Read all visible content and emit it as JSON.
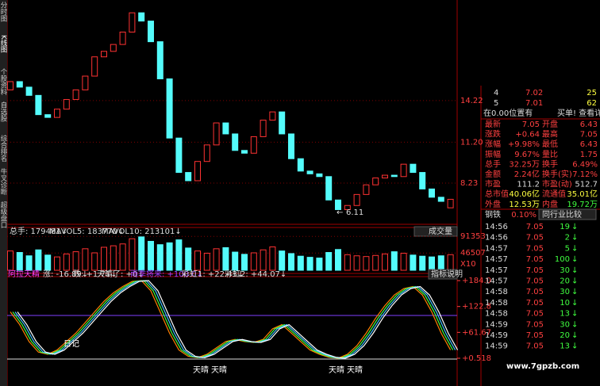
{
  "sidebar": [
    "分时图",
    "K线图",
    "个股资料",
    "自选股",
    "综合排名",
    "牛叉诊断",
    "超级盘口"
  ],
  "kline": {
    "open": [
      15.0,
      15.6,
      15.2,
      14.6,
      13.2,
      13.0,
      13.6,
      14.3,
      15.0,
      16.0,
      17.4,
      17.8,
      18.3,
      19.2,
      20.6,
      20.0,
      18.5,
      15.8,
      11.5,
      9.0,
      8.4,
      9.8,
      11.0,
      12.6,
      11.8,
      10.6,
      10.4,
      11.6,
      12.8,
      13.4,
      11.8,
      10.0,
      9.1,
      8.9,
      8.7,
      7.0,
      6.3,
      6.6,
      7.4,
      8.1,
      8.6,
      8.8,
      8.7,
      9.6,
      9.0,
      7.8,
      7.2,
      6.43
    ],
    "close": [
      15.6,
      15.2,
      14.6,
      13.2,
      13.0,
      13.6,
      14.3,
      15.0,
      16.0,
      17.4,
      17.8,
      18.3,
      19.2,
      20.6,
      20.0,
      18.5,
      15.8,
      11.5,
      9.0,
      8.4,
      9.8,
      11.0,
      12.6,
      11.8,
      10.6,
      10.4,
      11.6,
      12.8,
      13.4,
      11.8,
      10.0,
      9.1,
      8.9,
      8.7,
      7.0,
      6.3,
      6.6,
      7.4,
      8.1,
      8.6,
      8.8,
      8.7,
      9.6,
      9.0,
      7.8,
      7.2,
      6.9,
      7.05
    ],
    "ylim": [
      5.29,
      21.53
    ],
    "yticks": [
      14.22,
      {
        "value": 11.2,
        "label": "11.20"
      },
      8.23
    ],
    "low": 6.11
  },
  "volume": {
    "header": [
      "总手: 179481↓",
      "MAVOL5: 183770↓",
      "MAVOL10: 213101↓"
    ],
    "selector": "成交量",
    "values": [
      52000,
      48000,
      39000,
      55000,
      41000,
      36000,
      44000,
      50000,
      58000,
      47000,
      62000,
      66000,
      71000,
      85000,
      90000,
      78000,
      69000,
      74000,
      82000,
      60000,
      52000,
      46000,
      58000,
      61000,
      49000,
      43000,
      47000,
      55000,
      63000,
      52000,
      45000,
      38000,
      35000,
      33000,
      48000,
      56000,
      42000,
      39000,
      37000,
      40000,
      44000,
      50000,
      46000,
      41000,
      38000,
      36000,
      39000,
      42000
    ],
    "ylim": [
      0,
      104640
    ],
    "yticks": [
      91353,
      46507
    ],
    "unit": "X10"
  },
  "indicator": {
    "header": [
      "阿拉天精",
      "涨: -16.89↓",
      "跌: +1.71↓",
      "天晴了: +0↓",
      "雨季将来: +100.0↓",
      "彩虹1: +22.43↓",
      "彩虹2: +44.07↓"
    ],
    "button": "指标说明",
    "values": [
      110,
      80,
      40,
      15,
      10,
      20,
      40,
      60,
      85,
      110,
      135,
      155,
      170,
      182,
      184,
      160,
      110,
      60,
      20,
      5,
      2,
      10,
      25,
      40,
      45,
      40,
      38,
      45,
      70,
      80,
      60,
      40,
      20,
      10,
      3,
      0.6,
      10,
      30,
      60,
      95,
      125,
      150,
      165,
      170,
      150,
      110,
      60,
      20
    ],
    "ylim": [
      -46.3,
      193.4
    ],
    "yticks": [
      {
        "value": 184,
        "label": "+184.0"
      },
      {
        "value": 122.8,
        "label": "+122.8"
      },
      {
        "value": 61.67,
        "label": "+61.67"
      },
      {
        "value": 0.518,
        "label": "+0.518"
      }
    ],
    "labels": [
      "日记",
      "天晴",
      "天晴",
      "天晴",
      "天晴"
    ]
  },
  "order_book": [
    [
      "4",
      "7.02",
      "25"
    ],
    [
      "5",
      "7.01",
      "62"
    ]
  ],
  "notice": [
    "在0.00位置有",
    "买单! 查看详细"
  ],
  "quote": [
    [
      "最新",
      "7.05",
      "开盘",
      "6.43"
    ],
    [
      "涨跌",
      "+0.64",
      "最高",
      "7.05"
    ],
    [
      "涨幅",
      "+9.98%",
      "最低",
      "6.43"
    ],
    [
      "振幅",
      "9.67%",
      "量比",
      "1.75"
    ],
    [
      "总手",
      "32.25万",
      "换手",
      "6.49%"
    ],
    [
      "金额",
      "2.24亿",
      "换手(实)",
      "7.12%"
    ],
    [
      "市盈",
      "111.2",
      "市盈(动)",
      "512.7"
    ],
    [
      "总市值",
      "40.06亿",
      "流通值",
      "35.01亿"
    ],
    [
      "外盘",
      "12.53万",
      "内盘",
      "19.72万"
    ]
  ],
  "industry": [
    "钢铁",
    "0.10%",
    "同行业比较"
  ],
  "trades": [
    [
      "14:56",
      "7.05",
      "19"
    ],
    [
      "14:56",
      "7.05",
      "2"
    ],
    [
      "14:57",
      "7.05",
      "5"
    ],
    [
      "14:57",
      "7.05",
      "100"
    ],
    [
      "14:57",
      "7.05",
      "30"
    ],
    [
      "14:57",
      "7.05",
      "20"
    ],
    [
      "14:58",
      "7.05",
      "30"
    ],
    [
      "14:58",
      "7.05",
      "10"
    ],
    [
      "14:58",
      "7.05",
      "13"
    ],
    [
      "14:59",
      "7.05",
      "30"
    ],
    [
      "14:59",
      "7.05",
      "20"
    ],
    [
      "14:59",
      "7.05",
      "13"
    ]
  ],
  "watermark": "www.7gpzb.com"
}
